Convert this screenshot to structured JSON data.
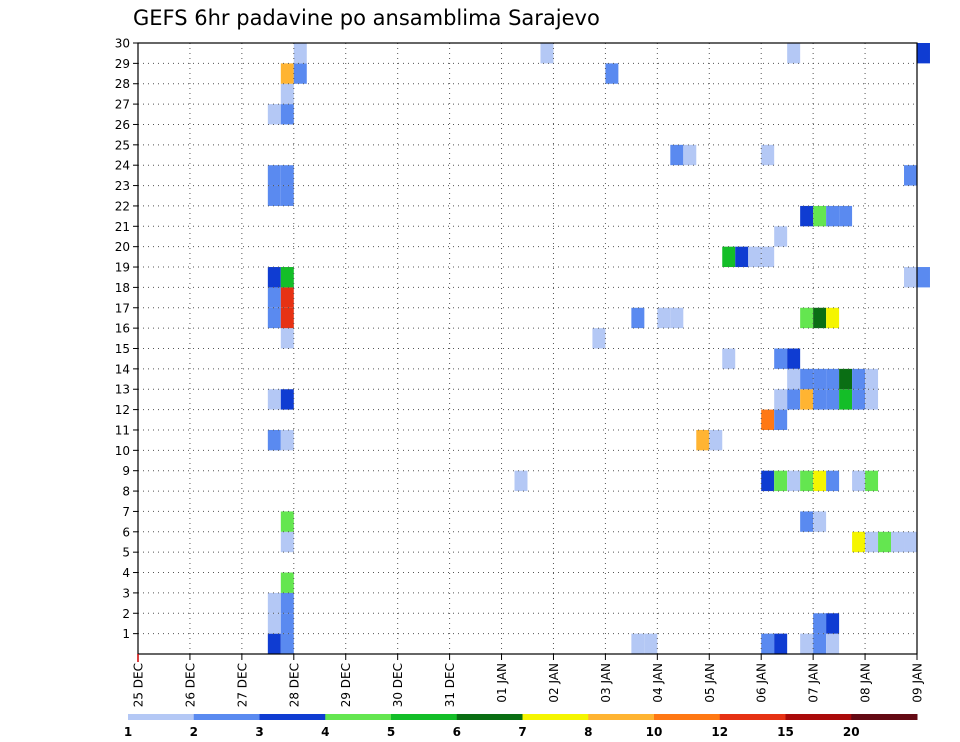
{
  "chart_data": {
    "type": "heatmap",
    "title": "GEFS 6hr padavine po ansamblima Sarajevo",
    "x_start": "25 DEC",
    "x_ticks": [
      "25 DEC",
      "26 DEC",
      "27 DEC",
      "28 DEC",
      "29 DEC",
      "30 DEC",
      "31 DEC",
      "01 JAN",
      "02 JAN",
      "03 JAN",
      "04 JAN",
      "05 JAN",
      "06 JAN",
      "07 JAN",
      "08 JAN",
      "09 JAN"
    ],
    "y_ticks": [
      1,
      2,
      3,
      4,
      5,
      6,
      7,
      8,
      9,
      10,
      11,
      12,
      13,
      14,
      15,
      16,
      17,
      18,
      19,
      20,
      21,
      22,
      23,
      24,
      25,
      26,
      27,
      28,
      29,
      30
    ],
    "ylim": [
      0,
      30
    ],
    "grid": true,
    "step_hours": 6,
    "colorbar": {
      "labels": [
        "1",
        "2",
        "3",
        "4",
        "5",
        "6",
        "7",
        "8",
        "10",
        "12",
        "15",
        "20"
      ],
      "colors": [
        "#b4c8f5",
        "#5a8af0",
        "#0f3cd2",
        "#64e650",
        "#14be28",
        "#0a6e14",
        "#f5f500",
        "#ffb432",
        "#ff7814",
        "#e63214",
        "#aa0a0a",
        "#640a14"
      ]
    },
    "cells": [
      {
        "d": 2.5,
        "m": 0,
        "c": 2
      },
      {
        "d": 2.75,
        "m": 0,
        "c": 1
      },
      {
        "d": 2.5,
        "m": 1,
        "c": 0
      },
      {
        "d": 2.75,
        "m": 1,
        "c": 1
      },
      {
        "d": 2.5,
        "m": 2,
        "c": 0
      },
      {
        "d": 2.75,
        "m": 2,
        "c": 1
      },
      {
        "d": 2.75,
        "m": 3,
        "c": 3
      },
      {
        "d": 2.75,
        "m": 5,
        "c": 0
      },
      {
        "d": 2.75,
        "m": 6,
        "c": 3
      },
      {
        "d": 2.5,
        "m": 10,
        "c": 1
      },
      {
        "d": 2.75,
        "m": 10,
        "c": 0
      },
      {
        "d": 2.5,
        "m": 12,
        "c": 0
      },
      {
        "d": 2.75,
        "m": 12,
        "c": 2
      },
      {
        "d": 2.75,
        "m": 15,
        "c": 0
      },
      {
        "d": 2.5,
        "m": 16,
        "c": 1
      },
      {
        "d": 2.75,
        "m": 16,
        "c": 9
      },
      {
        "d": 2.5,
        "m": 17,
        "c": 1
      },
      {
        "d": 2.75,
        "m": 17,
        "c": 9
      },
      {
        "d": 2.5,
        "m": 18,
        "c": 2
      },
      {
        "d": 2.75,
        "m": 18,
        "c": 4
      },
      {
        "d": 2.5,
        "m": 22,
        "c": 1
      },
      {
        "d": 2.75,
        "m": 22,
        "c": 1
      },
      {
        "d": 2.5,
        "m": 23,
        "c": 1
      },
      {
        "d": 2.75,
        "m": 23,
        "c": 1
      },
      {
        "d": 2.5,
        "m": 26,
        "c": 0
      },
      {
        "d": 2.75,
        "m": 26,
        "c": 1
      },
      {
        "d": 2.75,
        "m": 27,
        "c": 0
      },
      {
        "d": 2.75,
        "m": 28,
        "c": 7
      },
      {
        "d": 3,
        "m": 28,
        "c": 1
      },
      {
        "d": 3,
        "m": 29,
        "c": 0
      },
      {
        "d": 7.25,
        "m": 8,
        "c": 0
      },
      {
        "d": 7.75,
        "m": 29,
        "c": 0
      },
      {
        "d": 8.75,
        "m": 15,
        "c": 0
      },
      {
        "d": 9,
        "m": 28,
        "c": 1
      },
      {
        "d": 9.5,
        "m": 0,
        "c": 0
      },
      {
        "d": 9.75,
        "m": 0,
        "c": 0
      },
      {
        "d": 9.5,
        "m": 16,
        "c": 1
      },
      {
        "d": 10,
        "m": 16,
        "c": 0
      },
      {
        "d": 10.25,
        "m": 16,
        "c": 0
      },
      {
        "d": 10.25,
        "m": 24,
        "c": 1
      },
      {
        "d": 10.5,
        "m": 24,
        "c": 0
      },
      {
        "d": 10.75,
        "m": 10,
        "c": 7
      },
      {
        "d": 11,
        "m": 10,
        "c": 0
      },
      {
        "d": 11.25,
        "m": 14,
        "c": 0
      },
      {
        "d": 11.25,
        "m": 19,
        "c": 4
      },
      {
        "d": 11.5,
        "m": 19,
        "c": 2
      },
      {
        "d": 11.75,
        "m": 19,
        "c": 0
      },
      {
        "d": 12,
        "m": 19,
        "c": 0
      },
      {
        "d": 12,
        "m": 0,
        "c": 1
      },
      {
        "d": 12.25,
        "m": 0,
        "c": 2
      },
      {
        "d": 12,
        "m": 8,
        "c": 2
      },
      {
        "d": 12.25,
        "m": 8,
        "c": 3
      },
      {
        "d": 12.5,
        "m": 8,
        "c": 0
      },
      {
        "d": 12.75,
        "m": 8,
        "c": 3
      },
      {
        "d": 13,
        "m": 8,
        "c": 6
      },
      {
        "d": 13.25,
        "m": 8,
        "c": 1
      },
      {
        "d": 13.75,
        "m": 8,
        "c": 0
      },
      {
        "d": 14,
        "m": 8,
        "c": 3
      },
      {
        "d": 12,
        "m": 11,
        "c": 8
      },
      {
        "d": 12.25,
        "m": 11,
        "c": 1
      },
      {
        "d": 12,
        "m": 24,
        "c": 0
      },
      {
        "d": 12.25,
        "m": 14,
        "c": 1
      },
      {
        "d": 12.5,
        "m": 14,
        "c": 2
      },
      {
        "d": 12.25,
        "m": 12,
        "c": 0
      },
      {
        "d": 12.5,
        "m": 12,
        "c": 1
      },
      {
        "d": 12.75,
        "m": 12,
        "c": 7
      },
      {
        "d": 13,
        "m": 12,
        "c": 1
      },
      {
        "d": 13.25,
        "m": 12,
        "c": 1
      },
      {
        "d": 13.5,
        "m": 12,
        "c": 4
      },
      {
        "d": 13.75,
        "m": 12,
        "c": 1
      },
      {
        "d": 14,
        "m": 12,
        "c": 0
      },
      {
        "d": 12.5,
        "m": 13,
        "c": 0
      },
      {
        "d": 12.75,
        "m": 13,
        "c": 1
      },
      {
        "d": 13,
        "m": 13,
        "c": 1
      },
      {
        "d": 13.25,
        "m": 13,
        "c": 1
      },
      {
        "d": 13.5,
        "m": 13,
        "c": 5
      },
      {
        "d": 13.75,
        "m": 13,
        "c": 1
      },
      {
        "d": 14,
        "m": 13,
        "c": 0
      },
      {
        "d": 12.25,
        "m": 20,
        "c": 0
      },
      {
        "d": 12.5,
        "m": 29,
        "c": 0
      },
      {
        "d": 12.75,
        "m": 0,
        "c": 0
      },
      {
        "d": 13,
        "m": 0,
        "c": 1
      },
      {
        "d": 13.25,
        "m": 0,
        "c": 0
      },
      {
        "d": 13,
        "m": 1,
        "c": 1
      },
      {
        "d": 13.25,
        "m": 1,
        "c": 2
      },
      {
        "d": 12.75,
        "m": 6,
        "c": 1
      },
      {
        "d": 13,
        "m": 6,
        "c": 0
      },
      {
        "d": 12.75,
        "m": 16,
        "c": 3
      },
      {
        "d": 13,
        "m": 16,
        "c": 5
      },
      {
        "d": 13.25,
        "m": 16,
        "c": 6
      },
      {
        "d": 12.75,
        "m": 21,
        "c": 2
      },
      {
        "d": 13,
        "m": 21,
        "c": 3
      },
      {
        "d": 13.25,
        "m": 21,
        "c": 1
      },
      {
        "d": 13.5,
        "m": 21,
        "c": 1
      },
      {
        "d": 13.75,
        "m": 5,
        "c": 6
      },
      {
        "d": 14,
        "m": 5,
        "c": 0
      },
      {
        "d": 14.25,
        "m": 5,
        "c": 3
      },
      {
        "d": 14.5,
        "m": 5,
        "c": 0
      },
      {
        "d": 14.75,
        "m": 5,
        "c": 0
      },
      {
        "d": 14.75,
        "m": 18,
        "c": 0
      },
      {
        "d": 15,
        "m": 18,
        "c": 1
      },
      {
        "d": 14.75,
        "m": 23,
        "c": 1
      },
      {
        "d": 15,
        "m": 29,
        "c": 2
      }
    ]
  }
}
